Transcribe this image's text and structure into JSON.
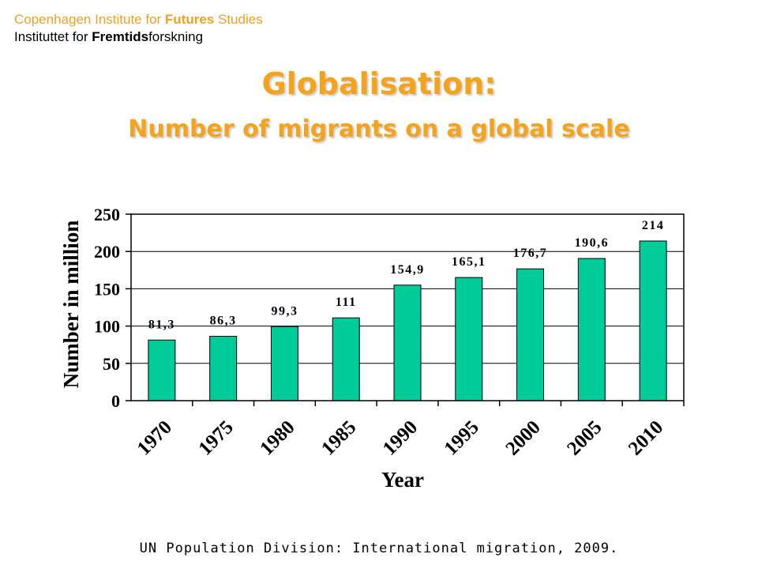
{
  "header": {
    "line1_pre": "Copenhagen Institute for ",
    "line1_bold": "Futures",
    "line1_post": " Studies",
    "line2_pre": "Instituttet for ",
    "line2_bold": "Fremtids",
    "line2_post": "forskning"
  },
  "title": "Globalisation:",
  "subtitle": "Number of migrants on a global scale",
  "source": "UN Population Division: International migration, 2009.",
  "colors": {
    "accent": "#f5a31a",
    "bar": "#00cc99"
  },
  "chart_data": {
    "type": "bar",
    "categories": [
      "1970",
      "1975",
      "1980",
      "1985",
      "1990",
      "1995",
      "2000",
      "2005",
      "2010"
    ],
    "values": [
      81.3,
      86.3,
      99.3,
      111,
      154.9,
      165.1,
      176.7,
      190.6,
      214
    ],
    "data_labels": [
      "81,3",
      "86,3",
      "99,3",
      "111",
      "154,9",
      "165,1",
      "176,7",
      "190,6",
      "214"
    ],
    "xlabel": "Year",
    "ylabel": "Number in million",
    "ylim": [
      0,
      250
    ],
    "yticks": [
      "0",
      "50",
      "100",
      "150",
      "200",
      "250"
    ],
    "grid": true,
    "legend": false
  }
}
